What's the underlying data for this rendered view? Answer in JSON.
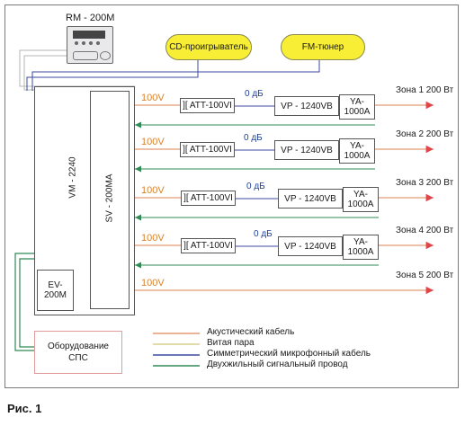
{
  "remote": {
    "label": "RM - 200M"
  },
  "sources": {
    "cd": "CD-проигрыватель",
    "fm": "FM-тюнер"
  },
  "mixer": {
    "label": "VM - 2240"
  },
  "selector": {
    "label": "SV - 200MA"
  },
  "ev_module": {
    "label": "EV-\n200M"
  },
  "fire_system": {
    "label": "Оборудование\nСПС"
  },
  "zones": [
    {
      "voltage": "100V",
      "att": "][ ATT-100VI",
      "db": "0 дБ",
      "amp": "VP - 1240VB",
      "speaker": "YA-\n1000A",
      "zone": "Зона 1 200 Вт"
    },
    {
      "voltage": "100V",
      "att": "][ ATT-100VI",
      "db": "0 дБ",
      "amp": "VP - 1240VB",
      "speaker": "YA-\n1000A",
      "zone": "Зона 2 200 Вт"
    },
    {
      "voltage": "100V",
      "att": "][ ATT-100VI",
      "db": "0 дБ",
      "amp": "VP - 1240VB",
      "speaker": "YA-\n1000A",
      "zone": "Зона 3 200 Вт"
    },
    {
      "voltage": "100V",
      "att": "][ ATT-100VI",
      "db": "0 дБ",
      "amp": "VP - 1240VB",
      "speaker": "YA-\n1000A",
      "zone": "Зона 4 200 Вт"
    },
    {
      "voltage": "100V",
      "zone": "Зона 5 200 Вт"
    }
  ],
  "legend": [
    {
      "label": "Акустический кабель",
      "color": "#e39a73"
    },
    {
      "label": "Витая пара",
      "color": "#d6cf8a"
    },
    {
      "label": "Симметрический микрофонный кабель",
      "color": "#3c4aa0"
    },
    {
      "label": "Двухжильный сигнальный провод",
      "color": "#2f8a56"
    }
  ],
  "caption": "Рис. 1"
}
